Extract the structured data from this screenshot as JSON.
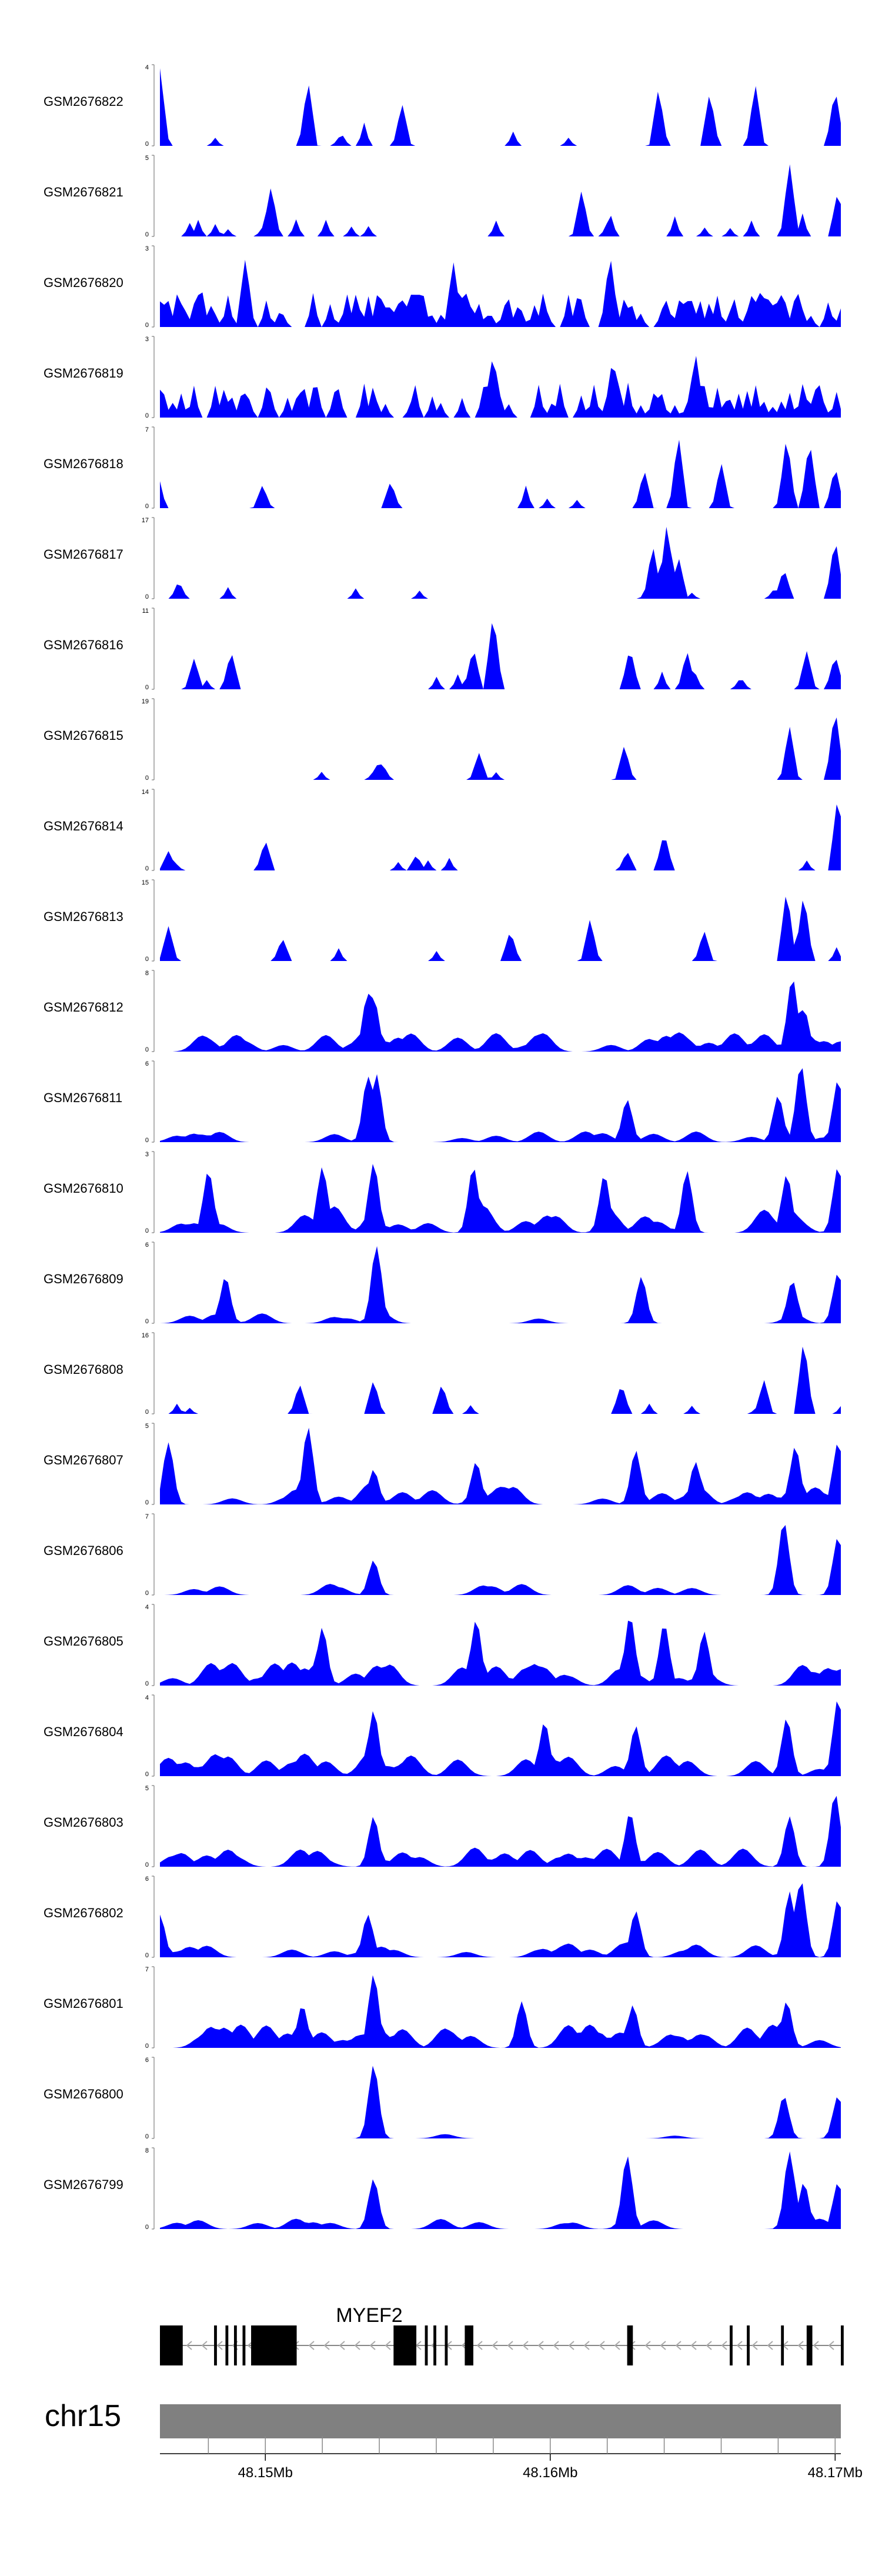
{
  "chart_data": {
    "type": "area",
    "title": "",
    "xlabel": "",
    "ylabel": "",
    "region": {
      "chromosome": "chr15",
      "x_range_mb": [
        48.1463,
        48.1702
      ],
      "ticks": [
        {
          "value": 48.15,
          "label": "48.15Mb"
        },
        {
          "value": 48.16,
          "label": "48.16Mb"
        },
        {
          "value": 48.17,
          "label": "48.17Mb"
        }
      ],
      "minor_tick_step_mb": 0.002
    },
    "gene": {
      "name": "MYEF2",
      "strand": "-",
      "span_mb": [
        48.1463,
        48.1702
      ],
      "exons_mb": [
        [
          48.1463,
          48.1471
        ],
        [
          48.1482,
          48.1483
        ],
        [
          48.1486,
          48.1487
        ],
        [
          48.1489,
          48.149
        ],
        [
          48.1492,
          48.1493
        ],
        [
          48.1495,
          48.1511
        ],
        [
          48.1545,
          48.1553
        ],
        [
          48.1556,
          48.1557
        ],
        [
          48.1559,
          48.156
        ],
        [
          48.1563,
          48.1564
        ],
        [
          48.157,
          48.1573
        ],
        [
          48.1627,
          48.1629
        ],
        [
          48.1663,
          48.1664
        ],
        [
          48.1669,
          48.167
        ],
        [
          48.1681,
          48.1682
        ],
        [
          48.169,
          48.1692
        ],
        [
          48.1702,
          48.1703
        ]
      ]
    },
    "tracks": [
      {
        "name": "GSM2676822",
        "ymax": 4,
        "density": 0.08,
        "base": 0.3,
        "smooth": false,
        "seed": 101,
        "peaks": [
          [
            48.1463,
            1.0
          ],
          [
            48.1515,
            0.85
          ],
          [
            48.1548,
            0.55
          ],
          [
            48.1638,
            0.75
          ],
          [
            48.1656,
            0.7
          ],
          [
            48.1672,
            0.8
          ],
          [
            48.17,
            0.75
          ]
        ]
      },
      {
        "name": "GSM2676821",
        "ymax": 5,
        "density": 0.1,
        "base": 0.3,
        "smooth": false,
        "seed": 102,
        "peaks": [
          [
            48.1502,
            0.65
          ],
          [
            48.1611,
            0.6
          ],
          [
            48.1684,
            0.95
          ],
          [
            48.1701,
            0.6
          ]
        ]
      },
      {
        "name": "GSM2676820",
        "ymax": 3,
        "density": 0.65,
        "base": 0.45,
        "smooth": false,
        "seed": 103,
        "peaks": [
          [
            48.1493,
            0.9
          ],
          [
            48.1566,
            0.85
          ],
          [
            48.1621,
            0.95
          ]
        ]
      },
      {
        "name": "GSM2676819",
        "ymax": 3,
        "density": 0.45,
        "base": 0.45,
        "smooth": false,
        "seed": 104,
        "peaks": [
          [
            48.158,
            0.85
          ],
          [
            48.1622,
            0.8
          ],
          [
            48.1651,
            0.85
          ]
        ]
      },
      {
        "name": "GSM2676818",
        "ymax": 7,
        "density": 0.04,
        "base": 0.3,
        "smooth": false,
        "seed": 105,
        "peaks": [
          [
            48.1462,
            0.5
          ],
          [
            48.1499,
            0.3
          ],
          [
            48.1544,
            0.35
          ],
          [
            48.1633,
            0.5
          ],
          [
            48.1645,
            0.95
          ],
          [
            48.166,
            0.6
          ],
          [
            48.1683,
            0.95
          ],
          [
            48.1691,
            0.9
          ],
          [
            48.17,
            0.55
          ]
        ]
      },
      {
        "name": "GSM2676817",
        "ymax": 17,
        "density": 0.06,
        "base": 0.2,
        "smooth": false,
        "seed": 106,
        "peaks": [
          [
            48.1636,
            0.7
          ],
          [
            48.1641,
            1.0
          ],
          [
            48.1645,
            0.55
          ],
          [
            48.1682,
            0.4
          ],
          [
            48.17,
            0.8
          ]
        ]
      },
      {
        "name": "GSM2676816",
        "ymax": 11,
        "density": 0.05,
        "base": 0.3,
        "smooth": false,
        "seed": 107,
        "peaks": [
          [
            48.1475,
            0.4
          ],
          [
            48.1488,
            0.5
          ],
          [
            48.158,
            1.0
          ],
          [
            48.1573,
            0.55
          ],
          [
            48.1628,
            0.55
          ],
          [
            48.1648,
            0.5
          ],
          [
            48.169,
            0.5
          ],
          [
            48.17,
            0.45
          ]
        ]
      },
      {
        "name": "GSM2676815",
        "ymax": 19,
        "density": 0.03,
        "base": 0.18,
        "smooth": false,
        "seed": 108,
        "peaks": [
          [
            48.154,
            0.25
          ],
          [
            48.1575,
            0.35
          ],
          [
            48.1626,
            0.45
          ],
          [
            48.1684,
            0.7
          ],
          [
            48.17,
            0.95
          ]
        ]
      },
      {
        "name": "GSM2676814",
        "ymax": 14,
        "density": 0.05,
        "base": 0.2,
        "smooth": false,
        "seed": 109,
        "peaks": [
          [
            48.1466,
            0.25
          ],
          [
            48.15,
            0.4
          ],
          [
            48.1553,
            0.2
          ],
          [
            48.1627,
            0.25
          ],
          [
            48.164,
            0.5
          ],
          [
            48.1701,
            1.0
          ]
        ]
      },
      {
        "name": "GSM2676813",
        "ymax": 15,
        "density": 0.04,
        "base": 0.25,
        "smooth": false,
        "seed": 110,
        "peaks": [
          [
            48.1466,
            0.45
          ],
          [
            48.1506,
            0.3
          ],
          [
            48.1586,
            0.4
          ],
          [
            48.1614,
            0.55
          ],
          [
            48.1654,
            0.4
          ],
          [
            48.1683,
            0.95
          ],
          [
            48.1689,
            0.9
          ]
        ]
      },
      {
        "name": "GSM2676812",
        "ymax": 8,
        "density": 0.18,
        "base": 0.25,
        "smooth": true,
        "seed": 111,
        "peaks": [
          [
            48.1536,
            0.75
          ],
          [
            48.1538,
            0.7
          ],
          [
            48.1685,
            0.95
          ],
          [
            48.1689,
            0.55
          ]
        ]
      },
      {
        "name": "GSM2676811",
        "ymax": 6,
        "density": 0.07,
        "base": 0.15,
        "smooth": true,
        "seed": 112,
        "peaks": [
          [
            48.1536,
            0.85
          ],
          [
            48.1539,
            0.88
          ],
          [
            48.1627,
            0.55
          ],
          [
            48.168,
            0.6
          ],
          [
            48.1688,
            1.0
          ],
          [
            48.1701,
            0.8
          ]
        ]
      },
      {
        "name": "GSM2676810",
        "ymax": 3,
        "density": 0.12,
        "base": 0.35,
        "smooth": true,
        "seed": 113,
        "peaks": [
          [
            48.148,
            0.8
          ],
          [
            48.152,
            0.85
          ],
          [
            48.1538,
            0.9
          ],
          [
            48.1573,
            0.85
          ],
          [
            48.1619,
            0.75
          ],
          [
            48.1648,
            0.8
          ],
          [
            48.1683,
            0.75
          ],
          [
            48.1701,
            0.85
          ]
        ]
      },
      {
        "name": "GSM2676809",
        "ymax": 6,
        "density": 0.09,
        "base": 0.15,
        "smooth": true,
        "seed": 114,
        "peaks": [
          [
            48.1486,
            0.6
          ],
          [
            48.1539,
            1.0
          ],
          [
            48.1632,
            0.6
          ],
          [
            48.1685,
            0.55
          ],
          [
            48.1701,
            0.65
          ]
        ]
      },
      {
        "name": "GSM2676808",
        "ymax": 16,
        "density": 0.03,
        "base": 0.18,
        "smooth": false,
        "seed": 115,
        "peaks": [
          [
            48.1512,
            0.4
          ],
          [
            48.1538,
            0.45
          ],
          [
            48.1562,
            0.4
          ],
          [
            48.1625,
            0.4
          ],
          [
            48.1675,
            0.45
          ],
          [
            48.1689,
            1.0
          ]
        ]
      },
      {
        "name": "GSM2676807",
        "ymax": 5,
        "density": 0.12,
        "base": 0.25,
        "smooth": true,
        "seed": 116,
        "peaks": [
          [
            48.1466,
            0.8
          ],
          [
            48.1515,
            1.0
          ],
          [
            48.1538,
            0.45
          ],
          [
            48.1574,
            0.55
          ],
          [
            48.163,
            0.7
          ],
          [
            48.1651,
            0.55
          ],
          [
            48.1686,
            0.75
          ],
          [
            48.1701,
            0.8
          ]
        ]
      },
      {
        "name": "GSM2676806",
        "ymax": 7,
        "density": 0.07,
        "base": 0.15,
        "smooth": true,
        "seed": 117,
        "peaks": [
          [
            48.1538,
            0.45
          ],
          [
            48.1682,
            0.95
          ],
          [
            48.1701,
            0.75
          ]
        ]
      },
      {
        "name": "GSM2676805",
        "ymax": 4,
        "density": 0.2,
        "base": 0.3,
        "smooth": true,
        "seed": 118,
        "peaks": [
          [
            48.152,
            0.75
          ],
          [
            48.1574,
            0.85
          ],
          [
            48.1628,
            0.9
          ],
          [
            48.164,
            0.8
          ],
          [
            48.1654,
            0.7
          ]
        ]
      },
      {
        "name": "GSM2676804",
        "ymax": 4,
        "density": 0.18,
        "base": 0.3,
        "smooth": true,
        "seed": 119,
        "peaks": [
          [
            48.1538,
            0.85
          ],
          [
            48.1598,
            0.7
          ],
          [
            48.163,
            0.65
          ],
          [
            48.1683,
            0.75
          ],
          [
            48.1701,
            1.0
          ]
        ]
      },
      {
        "name": "GSM2676803",
        "ymax": 5,
        "density": 0.14,
        "base": 0.25,
        "smooth": true,
        "seed": 120,
        "peaks": [
          [
            48.1538,
            0.65
          ],
          [
            48.1628,
            0.7
          ],
          [
            48.1684,
            0.65
          ],
          [
            48.17,
            0.95
          ]
        ]
      },
      {
        "name": "GSM2676802",
        "ymax": 6,
        "density": 0.1,
        "base": 0.2,
        "smooth": true,
        "seed": 121,
        "peaks": [
          [
            48.1463,
            0.55
          ],
          [
            48.1536,
            0.55
          ],
          [
            48.163,
            0.6
          ],
          [
            48.1684,
            0.85
          ],
          [
            48.1688,
            1.0
          ],
          [
            48.1701,
            0.75
          ]
        ]
      },
      {
        "name": "GSM2676801",
        "ymax": 7,
        "density": 0.18,
        "base": 0.3,
        "smooth": true,
        "seed": 122,
        "peaks": [
          [
            48.1513,
            0.55
          ],
          [
            48.1538,
            0.95
          ],
          [
            48.159,
            0.6
          ],
          [
            48.1629,
            0.55
          ],
          [
            48.1683,
            0.6
          ]
        ]
      },
      {
        "name": "GSM2676800",
        "ymax": 6,
        "density": 0.02,
        "base": 0.1,
        "smooth": true,
        "seed": 123,
        "peaks": [
          [
            48.1538,
            0.95
          ],
          [
            48.1682,
            0.55
          ],
          [
            48.1701,
            0.55
          ]
        ]
      },
      {
        "name": "GSM2676799",
        "ymax": 8,
        "density": 0.08,
        "base": 0.15,
        "smooth": true,
        "seed": 124,
        "peaks": [
          [
            48.1538,
            0.65
          ],
          [
            48.1627,
            0.95
          ],
          [
            48.1684,
            1.0
          ],
          [
            48.1689,
            0.6
          ],
          [
            48.1701,
            0.6
          ]
        ]
      }
    ]
  },
  "colors": {
    "track_fill": "#0000ff",
    "gene": "#000000",
    "intron": "#888888",
    "ideogram": "#808080",
    "axis": "#000000",
    "axis_tick": "#888888"
  }
}
